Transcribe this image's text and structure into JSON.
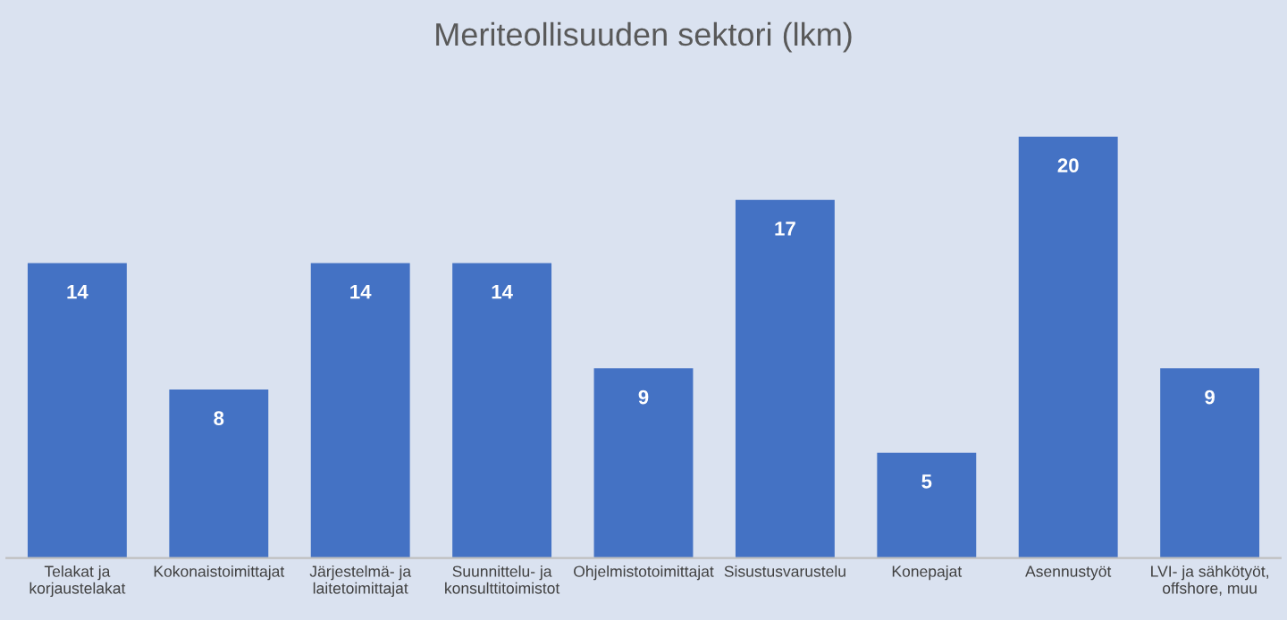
{
  "chart_data": {
    "type": "bar",
    "title": "Meriteollisuuden sektori (lkm)",
    "categories": [
      "Telakat ja\nkorjaustelakat",
      "Kokonaistoimittajat",
      "Järjestelmä- ja\nlaitetoimittajat",
      "Suunnittelu- ja\nkonsulttitoimistot",
      "Ohjelmistotoimittajat",
      "Sisustusvarustelu",
      "Konepajat",
      "Asennustyöt",
      "LVI- ja sähkötyöt,\noffshore, muu"
    ],
    "values": [
      14,
      8,
      14,
      14,
      9,
      17,
      5,
      20,
      9
    ],
    "color": "#4472c4",
    "data_labels": true,
    "grid": false,
    "legend": false
  }
}
